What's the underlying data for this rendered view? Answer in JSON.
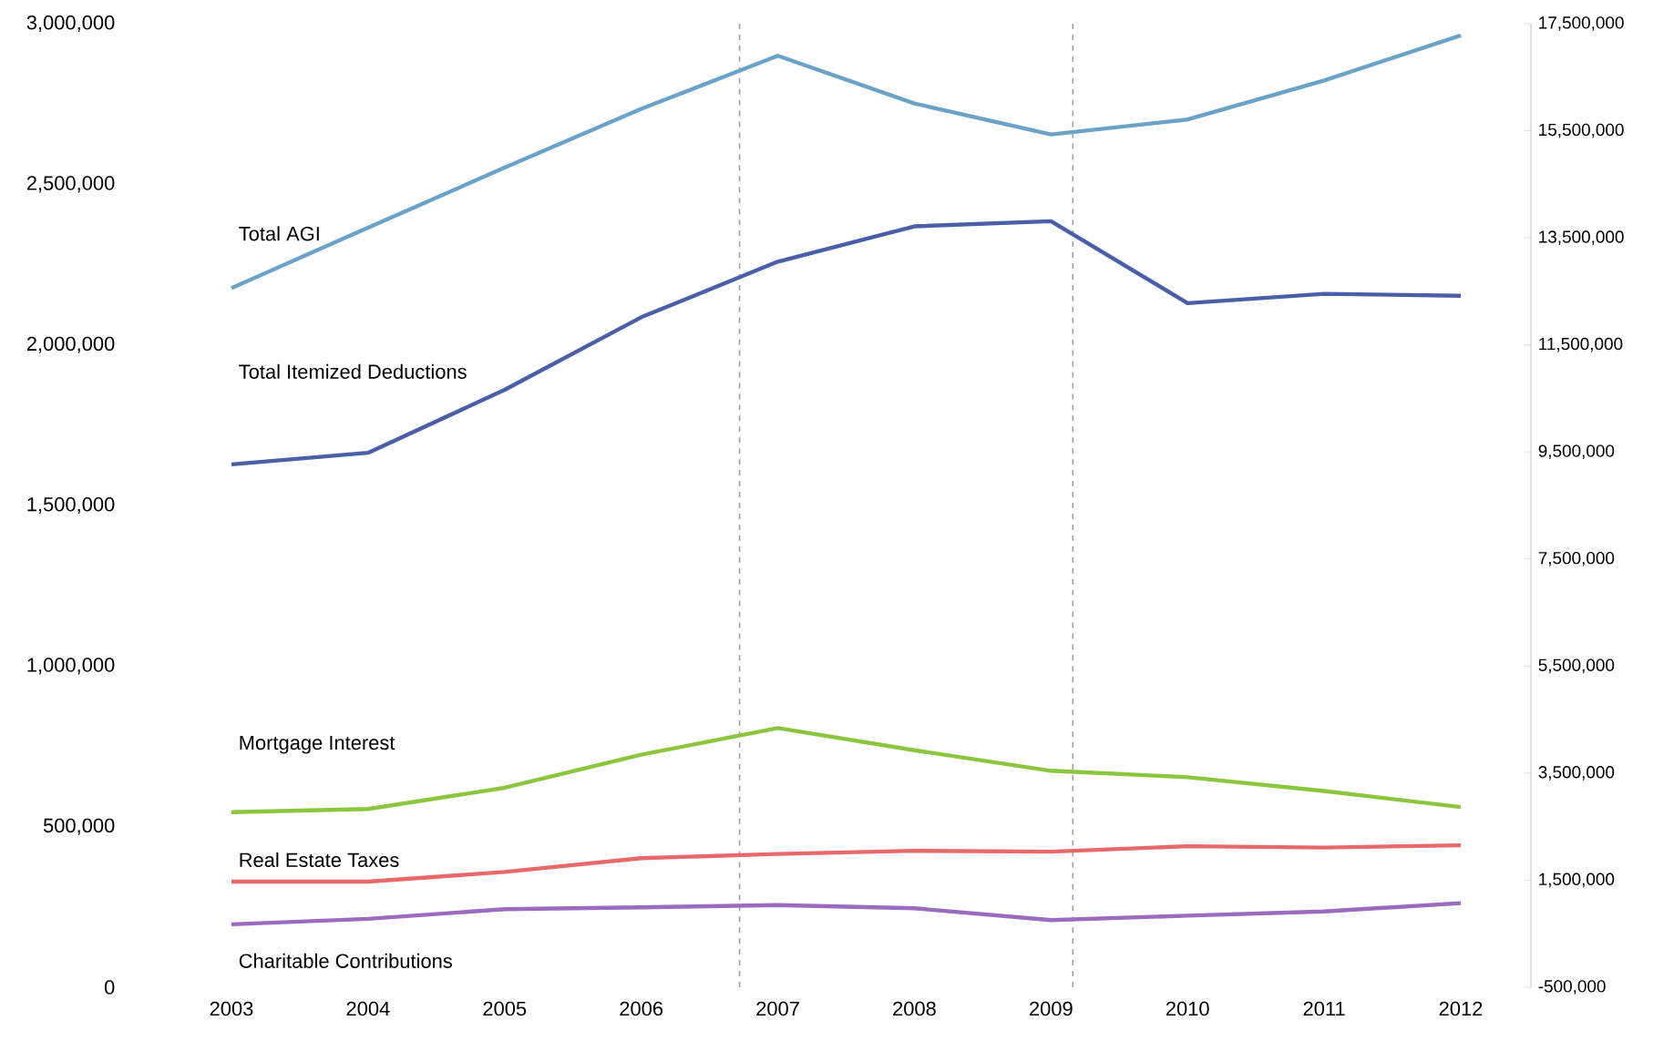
{
  "chart_data": {
    "type": "line",
    "x": [
      2003,
      2004,
      2005,
      2006,
      2007,
      2008,
      2009,
      2010,
      2011,
      2012
    ],
    "xlim": [
      2003,
      2012
    ],
    "xticks": [
      2003,
      2004,
      2005,
      2006,
      2007,
      2008,
      2009,
      2010,
      2011,
      2012
    ],
    "ylim": [
      0,
      3000000
    ],
    "yticks": [
      {
        "value": 0,
        "label": "0"
      },
      {
        "value": 500000,
        "label": "500,000"
      },
      {
        "value": 1000000,
        "label": "1,000,000"
      },
      {
        "value": 1500000,
        "label": "1,500,000"
      },
      {
        "value": 2000000,
        "label": "2,000,000"
      },
      {
        "value": 2500000,
        "label": "2,500,000"
      },
      {
        "value": 3000000,
        "label": "3,000,000"
      }
    ],
    "y2lim": [
      -500000,
      17500000
    ],
    "y2ticks": [
      {
        "value": -500000,
        "label": "-500,000"
      },
      {
        "value": 1500000,
        "label": "1,500,000"
      },
      {
        "value": 3500000,
        "label": "3,500,000"
      },
      {
        "value": 5500000,
        "label": "5,500,000"
      },
      {
        "value": 7500000,
        "label": "7,500,000"
      },
      {
        "value": 9500000,
        "label": "9,500,000"
      },
      {
        "value": 11500000,
        "label": "11,500,000"
      },
      {
        "value": 13500000,
        "label": "13,500,000"
      },
      {
        "value": 15500000,
        "label": "15,500,000"
      },
      {
        "value": 17500000,
        "label": "17,500,000"
      }
    ],
    "series": [
      {
        "name": "Total AGI",
        "color": "#6aa2c8",
        "axis": "y2",
        "values": [
          12560000,
          13690000,
          14810000,
          15910000,
          16900000,
          16010000,
          15430000,
          15710000,
          16440000,
          17280000
        ]
      },
      {
        "name": "Total Itemized Deductions",
        "color": "#4a5fa8",
        "values": [
          1628000,
          1664000,
          1860000,
          2086000,
          2259000,
          2369000,
          2385000,
          2130000,
          2159000,
          2153000
        ]
      },
      {
        "name": "Mortgage Interest",
        "color": "#8cc63f",
        "values": [
          545000,
          555000,
          621000,
          724000,
          807000,
          738000,
          674000,
          654000,
          611000,
          561000
        ]
      },
      {
        "name": "Real Estate Taxes",
        "color": "#e8696b",
        "values": [
          329000,
          329000,
          359000,
          402000,
          415000,
          425000,
          422000,
          439000,
          435000,
          442000
        ]
      },
      {
        "name": "Charitable  Contributions",
        "color": "#9b6bc0",
        "values": [
          196000,
          213000,
          243000,
          249000,
          256000,
          246000,
          209000,
          223000,
          236000,
          262000
        ]
      }
    ],
    "ref_lines": [
      {
        "axis": "x",
        "value": 2006.72,
        "color": "#a0a0a0",
        "line_style": "dashed"
      },
      {
        "axis": "x",
        "value": 2009.16,
        "color": "#a0a0a0",
        "line_style": "dashed"
      }
    ],
    "grid": false
  }
}
